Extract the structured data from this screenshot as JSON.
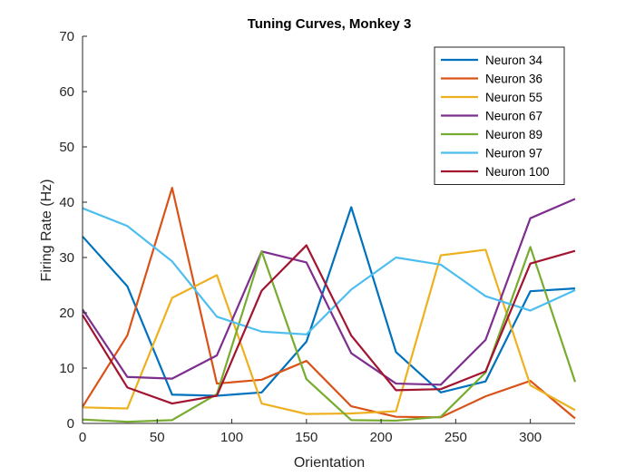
{
  "chart_data": {
    "type": "line",
    "title": "Tuning Curves, Monkey 3",
    "xlabel": "Orientation",
    "ylabel": "Firing Rate (Hz)",
    "xlim": [
      0,
      330
    ],
    "ylim": [
      0,
      70
    ],
    "xticks": [
      0,
      50,
      100,
      150,
      200,
      250,
      300
    ],
    "yticks": [
      0,
      10,
      20,
      30,
      40,
      50,
      60,
      70
    ],
    "grid": false,
    "legend_position": "top-right",
    "x": [
      0,
      30,
      60,
      90,
      120,
      150,
      180,
      210,
      240,
      270,
      300,
      330
    ],
    "series": [
      {
        "name": "Neuron 34",
        "color": "#0072BD",
        "values": [
          33.8,
          24.8,
          5.2,
          5.0,
          5.6,
          14.8,
          39.1,
          12.9,
          5.6,
          7.6,
          23.9,
          24.4
        ]
      },
      {
        "name": "Neuron 36",
        "color": "#D95319",
        "values": [
          3.0,
          15.9,
          42.6,
          7.2,
          7.9,
          11.3,
          3.1,
          1.2,
          1.1,
          4.9,
          7.7,
          0.9
        ]
      },
      {
        "name": "Neuron 55",
        "color": "#EDB120",
        "values": [
          2.9,
          2.7,
          22.7,
          26.8,
          3.6,
          1.7,
          1.8,
          2.2,
          30.4,
          31.4,
          6.9,
          2.4
        ]
      },
      {
        "name": "Neuron 67",
        "color": "#7E2F8E",
        "values": [
          20.6,
          8.4,
          8.1,
          12.3,
          31.1,
          29.1,
          12.7,
          7.2,
          7.0,
          15.1,
          37.1,
          40.6
        ]
      },
      {
        "name": "Neuron 89",
        "color": "#77AC30",
        "values": [
          0.7,
          0.3,
          0.6,
          5.3,
          31.1,
          8.0,
          0.6,
          0.5,
          1.2,
          9.2,
          31.9,
          7.5
        ]
      },
      {
        "name": "Neuron 97",
        "color": "#4DBEEE",
        "values": [
          38.9,
          35.7,
          29.3,
          19.3,
          16.6,
          16.1,
          24.2,
          30.0,
          28.7,
          23.0,
          20.4,
          24.1
        ]
      },
      {
        "name": "Neuron 100",
        "color": "#A2142F",
        "values": [
          19.6,
          6.5,
          3.6,
          5.0,
          24.0,
          32.2,
          15.9,
          6.0,
          6.2,
          9.4,
          28.9,
          31.2
        ]
      }
    ]
  }
}
